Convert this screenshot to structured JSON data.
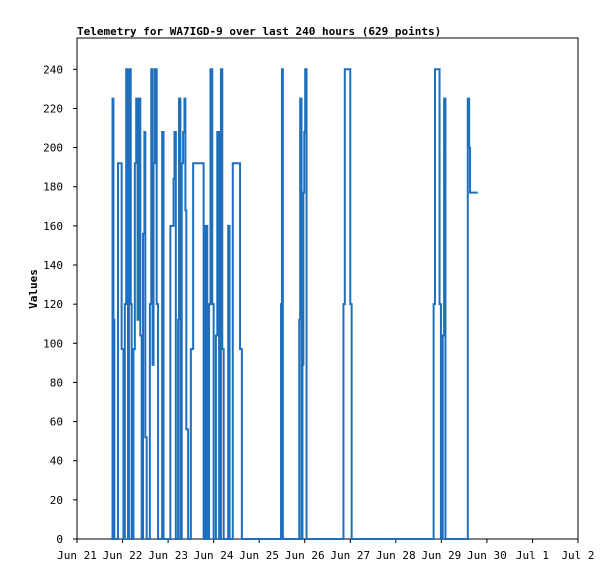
{
  "chart_data": {
    "type": "line",
    "title": "Telemetry for WA7IGD-9 over last 240 hours (629 points)",
    "xlabel": "",
    "ylabel": "Values",
    "x_ticks": [
      "Jun 21",
      "Jun 22",
      "Jun 23",
      "Jun 24",
      "Jun 25",
      "Jun 26",
      "Jun 27",
      "Jun 28",
      "Jun 29",
      "Jun 30",
      "Jul 1",
      "Jul 2"
    ],
    "xlim_days": [
      0,
      11
    ],
    "ylim": [
      0,
      256
    ],
    "y_ticks": [
      0,
      20,
      40,
      60,
      80,
      100,
      120,
      140,
      160,
      180,
      200,
      220,
      240
    ],
    "grid": false,
    "line_color": "#1f6fbd",
    "series": [
      {
        "name": "",
        "step": true,
        "points": [
          [
            0.75,
            0
          ],
          [
            0.78,
            225
          ],
          [
            0.8,
            112
          ],
          [
            0.82,
            0
          ],
          [
            0.9,
            192
          ],
          [
            0.98,
            97
          ],
          [
            1.02,
            0
          ],
          [
            1.05,
            120
          ],
          [
            1.08,
            240
          ],
          [
            1.12,
            0
          ],
          [
            1.14,
            240
          ],
          [
            1.18,
            120
          ],
          [
            1.2,
            0
          ],
          [
            1.24,
            97
          ],
          [
            1.27,
            192
          ],
          [
            1.3,
            225
          ],
          [
            1.33,
            112
          ],
          [
            1.36,
            225
          ],
          [
            1.39,
            104
          ],
          [
            1.42,
            0
          ],
          [
            1.45,
            156
          ],
          [
            1.48,
            208
          ],
          [
            1.5,
            52
          ],
          [
            1.53,
            0
          ],
          [
            1.6,
            120
          ],
          [
            1.63,
            240
          ],
          [
            1.66,
            89
          ],
          [
            1.68,
            192
          ],
          [
            1.71,
            240
          ],
          [
            1.75,
            120
          ],
          [
            1.78,
            0
          ],
          [
            1.87,
            208
          ],
          [
            1.9,
            0
          ],
          [
            2.05,
            160
          ],
          [
            2.12,
            184
          ],
          [
            2.14,
            208
          ],
          [
            2.17,
            0
          ],
          [
            2.22,
            112
          ],
          [
            2.24,
            225
          ],
          [
            2.27,
            0
          ],
          [
            2.3,
            192
          ],
          [
            2.33,
            208
          ],
          [
            2.36,
            225
          ],
          [
            2.38,
            168
          ],
          [
            2.4,
            56
          ],
          [
            2.44,
            0
          ],
          [
            2.5,
            97
          ],
          [
            2.55,
            192
          ],
          [
            2.78,
            0
          ],
          [
            2.82,
            160
          ],
          [
            2.86,
            0
          ],
          [
            2.9,
            120
          ],
          [
            2.93,
            240
          ],
          [
            2.97,
            120
          ],
          [
            3.0,
            0
          ],
          [
            3.05,
            104
          ],
          [
            3.08,
            208
          ],
          [
            3.12,
            0
          ],
          [
            3.16,
            240
          ],
          [
            3.19,
            97
          ],
          [
            3.22,
            0
          ],
          [
            3.32,
            160
          ],
          [
            3.35,
            0
          ],
          [
            3.42,
            192
          ],
          [
            3.58,
            97
          ],
          [
            3.62,
            0
          ],
          [
            4.45,
            0
          ],
          [
            4.48,
            120
          ],
          [
            4.5,
            240
          ],
          [
            4.52,
            0
          ],
          [
            4.85,
            0
          ],
          [
            4.88,
            112
          ],
          [
            4.9,
            225
          ],
          [
            4.93,
            0
          ],
          [
            4.95,
            89
          ],
          [
            4.97,
            177
          ],
          [
            4.99,
            208
          ],
          [
            5.01,
            240
          ],
          [
            5.04,
            0
          ],
          [
            5.82,
            0
          ],
          [
            5.85,
            120
          ],
          [
            5.88,
            240
          ],
          [
            6.0,
            120
          ],
          [
            6.03,
            0
          ],
          [
            7.8,
            0
          ],
          [
            7.83,
            120
          ],
          [
            7.86,
            240
          ],
          [
            7.96,
            120
          ],
          [
            7.99,
            0
          ],
          [
            8.03,
            104
          ],
          [
            8.06,
            225
          ],
          [
            8.09,
            0
          ],
          [
            8.55,
            0
          ],
          [
            8.58,
            225
          ],
          [
            8.61,
            200
          ],
          [
            8.63,
            177
          ],
          [
            8.8,
            177
          ]
        ]
      }
    ]
  }
}
